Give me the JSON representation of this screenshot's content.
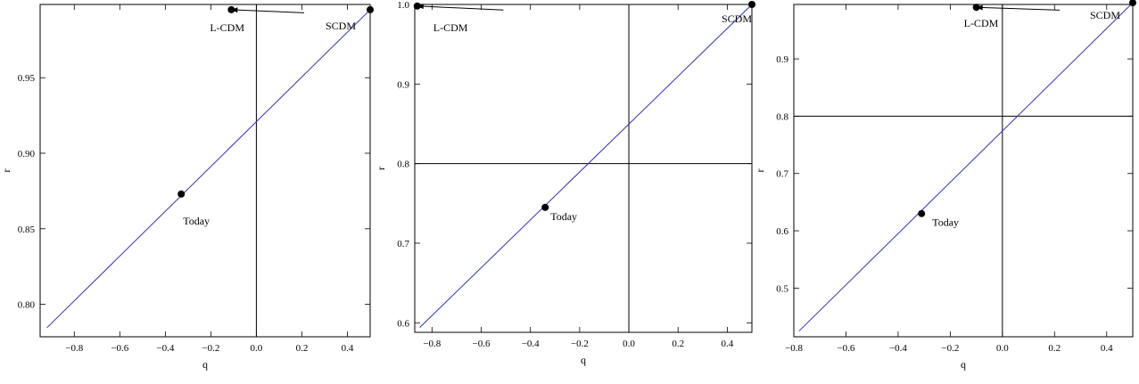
{
  "chart_data": [
    {
      "type": "line",
      "xlabel": "q",
      "ylabel": "r",
      "xlim": [
        -0.95,
        0.5
      ],
      "ylim": [
        0.7785,
        0.9985
      ],
      "xticks": [
        -0.8,
        -0.6,
        -0.4,
        -0.2,
        0.0,
        0.2,
        0.4
      ],
      "xtick_labels": [
        "−0.8",
        "−0.6",
        "−0.4",
        "−0.2",
        "0.0",
        "0.2",
        "0.4"
      ],
      "yticks": [
        0.8,
        0.85,
        0.9,
        0.95
      ],
      "ytick_labels": [
        "0.80",
        "0.85",
        "0.90",
        "0.95"
      ],
      "series": [
        {
          "x": [
            -0.92,
            0.5
          ],
          "y": [
            0.7845,
            0.995
          ]
        }
      ],
      "reference_lines": {
        "vertical": [
          0.0
        ],
        "horizontal": []
      },
      "points": [
        {
          "label": "SCDM",
          "x": 0.5,
          "y": 0.995
        },
        {
          "label": "L-CDM",
          "x": -0.11,
          "y": 0.995
        },
        {
          "label": "Today",
          "x": -0.33,
          "y": 0.873
        }
      ],
      "arrow": {
        "from": [
          0.21,
          0.993
        ],
        "to": [
          -0.11,
          0.995
        ]
      },
      "series_color": "#3333aa"
    },
    {
      "type": "line",
      "xlabel": "q",
      "ylabel": "r",
      "xlim": [
        -0.87,
        0.5
      ],
      "ylim": [
        0.588,
        1.0
      ],
      "xticks": [
        -0.8,
        -0.6,
        -0.4,
        -0.2,
        0.0,
        0.2,
        0.4
      ],
      "xtick_labels": [
        "−0.8",
        "−0.6",
        "−0.4",
        "−0.2",
        "0.0",
        "0.2",
        "0.4"
      ],
      "yticks": [
        0.6,
        0.7,
        0.8,
        0.9,
        1.0
      ],
      "ytick_labels": [
        "0.6",
        "0.7",
        "0.8",
        "0.9",
        "1.0"
      ],
      "series": [
        {
          "x": [
            -0.85,
            0.5
          ],
          "y": [
            0.594,
            1.0
          ]
        }
      ],
      "reference_lines": {
        "vertical": [
          0.0
        ],
        "horizontal": [
          0.8
        ]
      },
      "points": [
        {
          "label": "SCDM",
          "x": 0.5,
          "y": 1.0
        },
        {
          "label": "L-CDM",
          "x": -0.86,
          "y": 0.998
        },
        {
          "label": "Today",
          "x": -0.34,
          "y": 0.745
        }
      ],
      "arrow": {
        "from": [
          -0.51,
          0.993
        ],
        "to": [
          -0.86,
          0.998
        ]
      },
      "series_color": "#3333aa"
    },
    {
      "type": "line",
      "xlabel": "q",
      "ylabel": "r",
      "xlim": [
        -0.8,
        0.5
      ],
      "ylim": [
        0.415,
        0.995
      ],
      "xticks": [
        -0.8,
        -0.6,
        -0.4,
        -0.2,
        0.0,
        0.2,
        0.4
      ],
      "xtick_labels": [
        "−0.8",
        "−0.6",
        "−0.4",
        "−0.2",
        "0.0",
        "0.2",
        "0.4"
      ],
      "yticks": [
        0.5,
        0.6,
        0.7,
        0.8,
        0.9
      ],
      "ytick_labels": [
        "0.5",
        "0.6",
        "0.7",
        "0.8",
        "0.9"
      ],
      "series": [
        {
          "x": [
            -0.78,
            0.5
          ],
          "y": [
            0.425,
            0.998
          ]
        }
      ],
      "reference_lines": {
        "vertical": [
          0.0
        ],
        "horizontal": [
          0.8
        ]
      },
      "points": [
        {
          "label": "SCDM",
          "x": 0.5,
          "y": 0.998
        },
        {
          "label": "L-CDM",
          "x": -0.1,
          "y": 0.99
        },
        {
          "label": "Today",
          "x": -0.31,
          "y": 0.63
        }
      ],
      "arrow": {
        "from": [
          0.22,
          0.985
        ],
        "to": [
          -0.1,
          0.99
        ]
      },
      "series_color": "#3333aa"
    }
  ]
}
